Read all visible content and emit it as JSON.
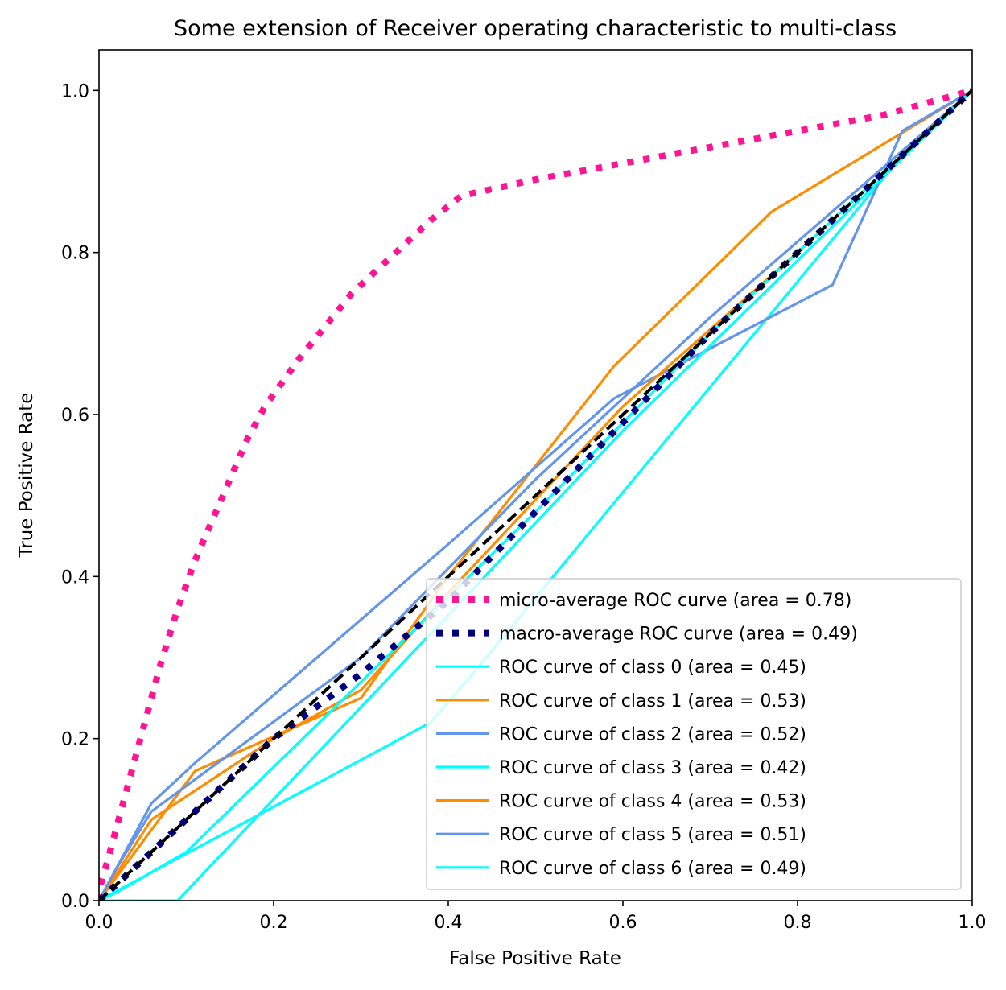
{
  "chart_data": {
    "type": "line",
    "title": "Some extension of Receiver operating characteristic to multi-class",
    "xlabel": "False Positive Rate",
    "ylabel": "True Positive Rate",
    "xlim": [
      0.0,
      1.0
    ],
    "ylim": [
      0.0,
      1.05
    ],
    "xticks": [
      0.0,
      0.2,
      0.4,
      0.6,
      0.8,
      1.0
    ],
    "yticks": [
      0.0,
      0.2,
      0.4,
      0.6,
      0.8,
      1.0
    ],
    "xtick_labels": [
      "0.0",
      "0.2",
      "0.4",
      "0.6",
      "0.8",
      "1.0"
    ],
    "ytick_labels": [
      "0.0",
      "0.2",
      "0.4",
      "0.6",
      "0.8",
      "1.0"
    ],
    "grid": false,
    "legend_position": "lower right",
    "series": [
      {
        "name": "micro-average ROC curve (area = 0.78)",
        "color": "#ff1493",
        "style": "dotted",
        "width": "thick",
        "x": [
          0.0,
          0.002,
          0.01,
          0.02,
          0.03,
          0.05,
          0.07,
          0.09,
          0.11,
          0.13,
          0.15,
          0.17,
          0.19,
          0.21,
          0.23,
          0.26,
          0.29,
          0.32,
          0.35,
          0.38,
          0.415,
          0.5,
          0.6,
          0.7,
          0.8,
          0.9,
          1.0
        ],
        "y": [
          0.0,
          0.02,
          0.05,
          0.09,
          0.13,
          0.21,
          0.29,
          0.36,
          0.42,
          0.47,
          0.52,
          0.57,
          0.61,
          0.64,
          0.67,
          0.71,
          0.75,
          0.78,
          0.81,
          0.84,
          0.87,
          0.89,
          0.91,
          0.93,
          0.95,
          0.97,
          1.0
        ]
      },
      {
        "name": "macro-average ROC curve (area = 0.49)",
        "color": "#000080",
        "style": "dotted",
        "width": "thick",
        "x": [
          0.0,
          0.1,
          0.2,
          0.3,
          0.4,
          0.5,
          0.6,
          0.7,
          0.8,
          0.9,
          1.0
        ],
        "y": [
          0.0,
          0.1,
          0.2,
          0.28,
          0.37,
          0.48,
          0.59,
          0.7,
          0.8,
          0.9,
          1.0
        ]
      },
      {
        "name": "ROC curve of class 0 (area = 0.45)",
        "color": "#00ffff",
        "style": "solid",
        "x": [
          0.0,
          0.38,
          0.42,
          0.92,
          1.0
        ],
        "y": [
          0.0,
          0.22,
          0.27,
          0.92,
          1.0
        ]
      },
      {
        "name": "ROC curve of class 1 (area = 0.53)",
        "color": "#ff8c00",
        "style": "solid",
        "x": [
          0.0,
          0.11,
          0.3,
          0.4,
          0.59,
          0.77,
          1.0
        ],
        "y": [
          0.0,
          0.16,
          0.25,
          0.4,
          0.66,
          0.85,
          1.0
        ]
      },
      {
        "name": "ROC curve of class 2 (area = 0.52)",
        "color": "#6495ed",
        "style": "solid",
        "x": [
          0.0,
          0.06,
          0.11,
          0.4,
          0.59,
          0.84,
          0.92,
          1.0
        ],
        "y": [
          0.0,
          0.12,
          0.17,
          0.44,
          0.62,
          0.76,
          0.95,
          1.0
        ]
      },
      {
        "name": "ROC curve of class 3 (area = 0.42)",
        "color": "#00ffff",
        "style": "solid",
        "x": [
          0.0,
          0.09,
          0.6,
          1.0
        ],
        "y": [
          0.0,
          0.0,
          0.58,
          1.0
        ]
      },
      {
        "name": "ROC curve of class 4 (area = 0.53)",
        "color": "#ff8c00",
        "style": "solid",
        "x": [
          0.0,
          0.06,
          0.2,
          0.3,
          0.4,
          0.6,
          0.8,
          1.0
        ],
        "y": [
          0.0,
          0.1,
          0.2,
          0.26,
          0.38,
          0.61,
          0.8,
          1.0
        ]
      },
      {
        "name": "ROC curve of class 5 (area = 0.51)",
        "color": "#6495ed",
        "style": "solid",
        "x": [
          0.0,
          0.02,
          0.06,
          0.3,
          0.5,
          0.7,
          1.0
        ],
        "y": [
          0.0,
          0.04,
          0.11,
          0.3,
          0.52,
          0.72,
          1.0
        ]
      },
      {
        "name": "ROC curve of class 6 (area = 0.49)",
        "color": "#00ffff",
        "style": "solid",
        "x": [
          0.0,
          0.02,
          0.1,
          0.3,
          0.5,
          0.7,
          0.9,
          1.0
        ],
        "y": [
          0.0,
          0.01,
          0.06,
          0.27,
          0.48,
          0.7,
          0.9,
          1.0
        ]
      }
    ],
    "reference_line": {
      "color": "#000000",
      "style": "dashed",
      "x": [
        0.0,
        1.0
      ],
      "y": [
        0.0,
        1.0
      ]
    }
  }
}
